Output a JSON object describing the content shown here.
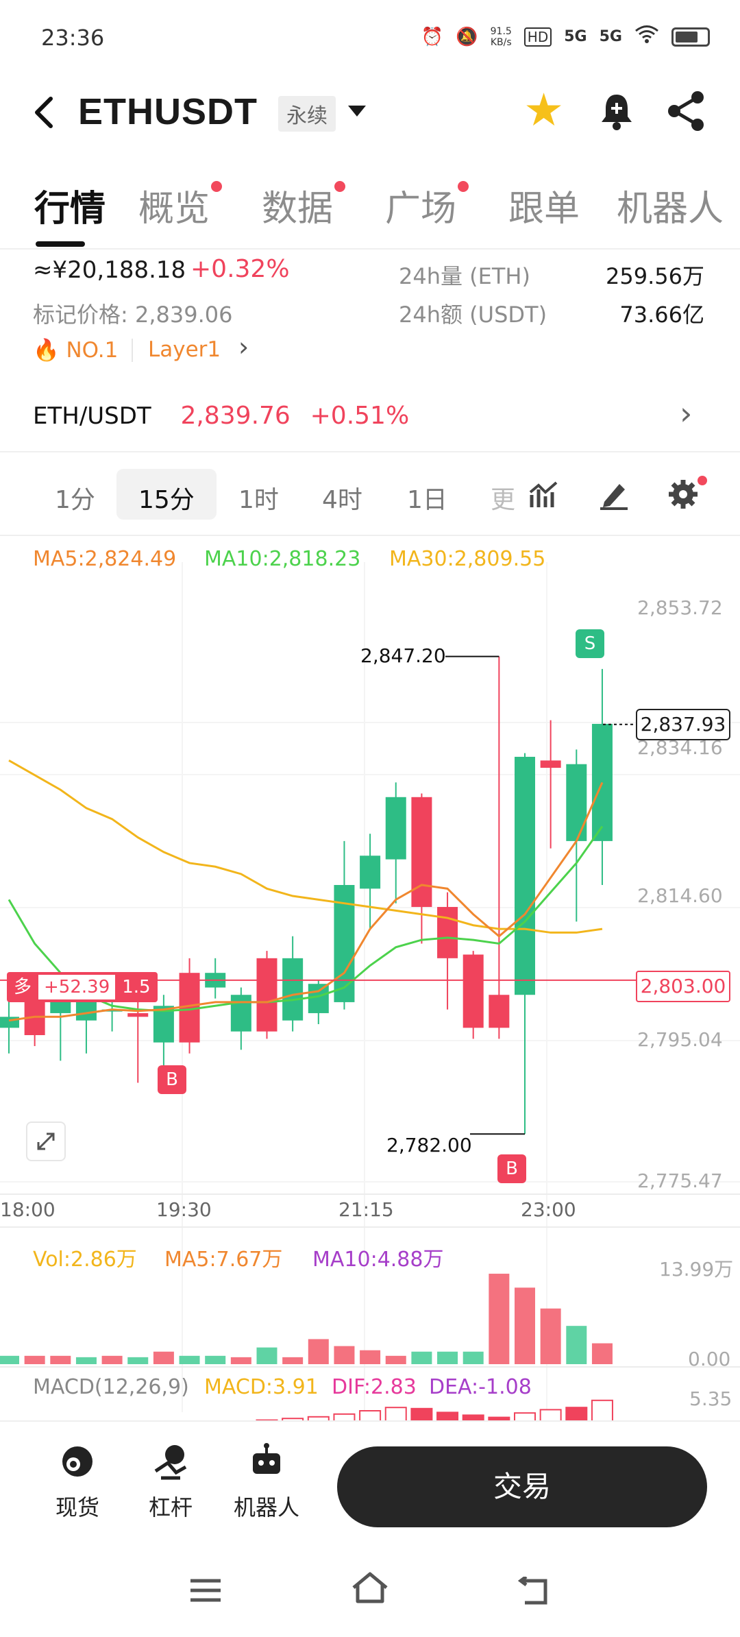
{
  "status": {
    "time": "23:36",
    "net_speed": "91.5",
    "net_unit": "KB/s",
    "sim1": "5G",
    "sim2": "5G",
    "hd": "HD"
  },
  "header": {
    "title": "ETHUSDT",
    "badge": "永续"
  },
  "tabs": [
    {
      "label": "行情",
      "dot": false
    },
    {
      "label": "概览",
      "dot": true
    },
    {
      "label": "数据",
      "dot": true
    },
    {
      "label": "广场",
      "dot": true
    },
    {
      "label": "跟单",
      "dot": false
    },
    {
      "label": "机器人",
      "dot": false
    }
  ],
  "info": {
    "cny_price": "≈¥20,188.18",
    "cny_change": "+0.32%",
    "mark_label": "标记价格: 2,839.06",
    "rank": "NO.1",
    "tag": "Layer1",
    "vol_label": "24h量 (ETH)",
    "vol_value": "259.56万",
    "amt_label": "24h额 (USDT)",
    "amt_value": "73.66亿"
  },
  "pair_row": {
    "pair": "ETH/USDT",
    "price": "2,839.76",
    "change": "+0.51%"
  },
  "timeframes": [
    "1分",
    "15分",
    "1时",
    "4时",
    "1日",
    "更"
  ],
  "ma": {
    "ma5": "MA5:2,824.49",
    "ma10": "MA10:2,818.23",
    "ma30": "MA30:2,809.55"
  },
  "chart_data": {
    "type": "candlestick",
    "y_ticks": [
      "2,853.72",
      "2,834.16",
      "2,814.60",
      "2,795.04",
      "2,775.47"
    ],
    "x_ticks": [
      "18:00",
      "19:30",
      "21:15",
      "23:00"
    ],
    "current_price": "2,837.93",
    "position_line": "2,803.00",
    "high_label": "2,847.20",
    "low_label": "2,782.00",
    "position_tag": {
      "side": "多",
      "pnl": "+52.39",
      "leverage": "1.5"
    },
    "markers": [
      "B",
      "B",
      "S"
    ],
    "candles": [
      {
        "o": 2796.5,
        "c": 2798.0,
        "h": 2802.0,
        "l": 2793.0
      },
      {
        "o": 2801.0,
        "c": 2795.5,
        "h": 2803.0,
        "l": 2794.0
      },
      {
        "o": 2798.5,
        "c": 2801.5,
        "h": 2804.0,
        "l": 2792.0
      },
      {
        "o": 2797.5,
        "c": 2800.5,
        "h": 2804.0,
        "l": 2793.0
      },
      {
        "o": 2799.0,
        "c": 2799.0,
        "h": 2804.0,
        "l": 2796.0
      },
      {
        "o": 2798.5,
        "c": 2798.0,
        "h": 2800.0,
        "l": 2789.0
      },
      {
        "o": 2794.5,
        "c": 2799.5,
        "h": 2801.0,
        "l": 2790.0
      },
      {
        "o": 2804.0,
        "c": 2794.5,
        "h": 2806.0,
        "l": 2793.0
      },
      {
        "o": 2802.0,
        "c": 2804.0,
        "h": 2806.0,
        "l": 2800.5
      },
      {
        "o": 2796.0,
        "c": 2801.0,
        "h": 2802.0,
        "l": 2793.5
      },
      {
        "o": 2806.0,
        "c": 2796.0,
        "h": 2807.0,
        "l": 2795.0
      },
      {
        "o": 2797.5,
        "c": 2806.0,
        "h": 2809.0,
        "l": 2796.0
      },
      {
        "o": 2798.5,
        "c": 2802.5,
        "h": 2803.0,
        "l": 2797.0
      },
      {
        "o": 2800.0,
        "c": 2816.0,
        "h": 2822.0,
        "l": 2799.0
      },
      {
        "o": 2815.5,
        "c": 2820.0,
        "h": 2823.0,
        "l": 2810.0
      },
      {
        "o": 2819.5,
        "c": 2828.0,
        "h": 2830.0,
        "l": 2813.5
      },
      {
        "o": 2828.0,
        "c": 2813.0,
        "h": 2828.5,
        "l": 2808.0
      },
      {
        "o": 2813.0,
        "c": 2806.0,
        "h": 2815.0,
        "l": 2799.0
      },
      {
        "o": 2806.5,
        "c": 2796.5,
        "h": 2807.0,
        "l": 2795.0
      },
      {
        "o": 2801.0,
        "c": 2796.5,
        "h": 2847.2,
        "l": 2795.0
      },
      {
        "o": 2801.0,
        "c": 2833.5,
        "h": 2834.0,
        "l": 2782.0
      },
      {
        "o": 2833.0,
        "c": 2832.0,
        "h": 2838.5,
        "l": 2821.0
      },
      {
        "o": 2822.0,
        "c": 2832.5,
        "h": 2834.5,
        "l": 2811.0
      },
      {
        "o": 2822.0,
        "c": 2838.0,
        "h": 2845.5,
        "l": 2816.0
      }
    ],
    "ma5_line": [
      2797.5,
      2798.0,
      2798.0,
      2798.5,
      2799.0,
      2798.8,
      2799.0,
      2799.5,
      2800.0,
      2800.0,
      2800.0,
      2801.0,
      2801.5,
      2804.0,
      2810.0,
      2814.0,
      2816.0,
      2815.5,
      2812.0,
      2809.0,
      2812.0,
      2817.0,
      2822.0,
      2830.0
    ],
    "ma10_line": [
      2814.0,
      2808.0,
      2804.0,
      2801.0,
      2799.5,
      2799.0,
      2798.8,
      2799.0,
      2799.5,
      2800.0,
      2800.0,
      2800.3,
      2800.8,
      2802.0,
      2805.0,
      2807.5,
      2808.5,
      2808.8,
      2808.5,
      2808.0,
      2811.0,
      2815.0,
      2819.0,
      2824.0
    ],
    "ma30_line": [
      2833.0,
      2831.0,
      2829.0,
      2826.5,
      2825.0,
      2822.5,
      2820.5,
      2819.0,
      2818.5,
      2817.5,
      2815.5,
      2814.5,
      2814.0,
      2813.5,
      2813.0,
      2812.5,
      2812.0,
      2811.5,
      2810.5,
      2810.0,
      2810.0,
      2809.5,
      2809.5,
      2810.0
    ],
    "volume": {
      "label_vol": "Vol:2.86万",
      "label_ma5": "MA5:7.67万",
      "label_ma10": "MA10:4.88万",
      "y_top": "13.99万",
      "y_bottom": "0.00",
      "values": [
        1.2,
        1.2,
        1.2,
        1.0,
        1.2,
        1.0,
        1.8,
        1.2,
        1.2,
        1.0,
        2.4,
        1.0,
        3.6,
        2.6,
        2.0,
        1.2,
        1.8,
        1.8,
        1.8,
        13.0,
        11.0,
        8.0,
        5.5,
        3.0
      ],
      "up": [
        true,
        false,
        false,
        true,
        false,
        true,
        false,
        true,
        true,
        false,
        true,
        false,
        false,
        false,
        false,
        false,
        true,
        true,
        true,
        false,
        false,
        false,
        true,
        false
      ]
    },
    "macd": {
      "label": "MACD(12,26,9)",
      "macd": "MACD:3.91",
      "dif": "DIF:2.83",
      "dea": "DEA:-1.08",
      "y_top": "5.35"
    }
  },
  "bottom": {
    "spot": "现货",
    "leverage": "杠杆",
    "bot": "机器人",
    "trade": "交易"
  }
}
